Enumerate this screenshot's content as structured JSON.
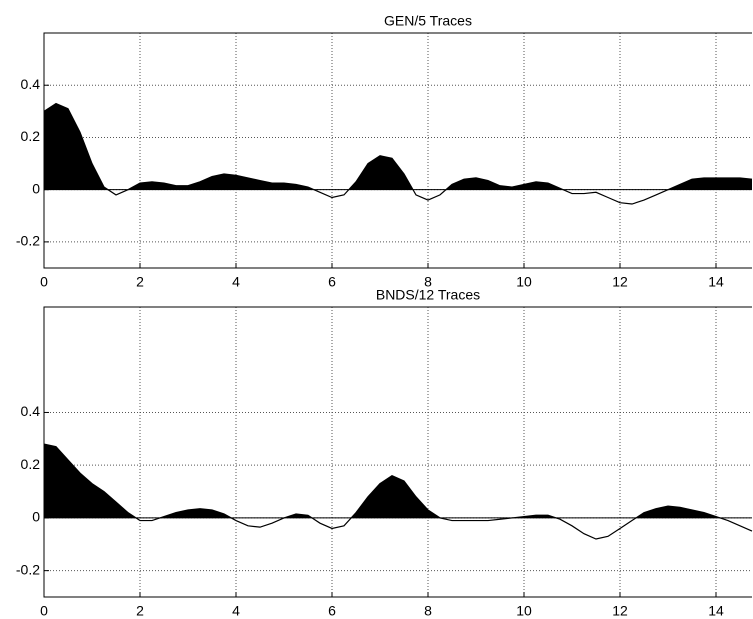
{
  "chart_data": [
    {
      "type": "area",
      "title": "GEN/5 Traces",
      "color": "#000000",
      "grid": true,
      "x": [
        0,
        0.25,
        0.5,
        0.75,
        1,
        1.25,
        1.5,
        1.75,
        2,
        2.25,
        2.5,
        2.75,
        3,
        3.25,
        3.5,
        3.75,
        4,
        4.25,
        4.5,
        4.75,
        5,
        5.25,
        5.5,
        5.75,
        6,
        6.25,
        6.5,
        6.75,
        7,
        7.25,
        7.5,
        7.75,
        8,
        8.25,
        8.5,
        8.75,
        9,
        9.25,
        9.5,
        9.75,
        10,
        10.25,
        10.5,
        10.75,
        11,
        11.25,
        11.5,
        11.75,
        12,
        12.25,
        12.5,
        12.75,
        13,
        13.25,
        13.5,
        13.75,
        14,
        14.25,
        14.5,
        14.75
      ],
      "values": [
        0.3,
        0.33,
        0.31,
        0.22,
        0.1,
        0.01,
        -0.02,
        0.0,
        0.025,
        0.03,
        0.025,
        0.015,
        0.015,
        0.03,
        0.05,
        0.06,
        0.055,
        0.045,
        0.035,
        0.025,
        0.025,
        0.02,
        0.01,
        -0.01,
        -0.03,
        -0.02,
        0.03,
        0.1,
        0.13,
        0.12,
        0.06,
        -0.02,
        -0.04,
        -0.02,
        0.02,
        0.04,
        0.045,
        0.035,
        0.015,
        0.01,
        0.02,
        0.03,
        0.025,
        0.005,
        -0.015,
        -0.015,
        -0.01,
        -0.03,
        -0.05,
        -0.055,
        -0.04,
        -0.02,
        0.0,
        0.02,
        0.04,
        0.045,
        0.045,
        0.045,
        0.045,
        0.04
      ],
      "xlim": [
        0,
        14.75
      ],
      "xticks": [
        0,
        2,
        4,
        6,
        8,
        10,
        12,
        14
      ],
      "ylim": [
        -0.3,
        0.6
      ],
      "yticks": [
        -0.2,
        0,
        0.2,
        0.4
      ]
    },
    {
      "type": "area",
      "title": "BNDS/12 Traces",
      "color": "#000000",
      "grid": true,
      "x": [
        0,
        0.25,
        0.5,
        0.75,
        1,
        1.25,
        1.5,
        1.75,
        2,
        2.25,
        2.5,
        2.75,
        3,
        3.25,
        3.5,
        3.75,
        4,
        4.25,
        4.5,
        4.75,
        5,
        5.25,
        5.5,
        5.75,
        6,
        6.25,
        6.5,
        6.75,
        7,
        7.25,
        7.5,
        7.75,
        8,
        8.25,
        8.5,
        8.75,
        9,
        9.25,
        9.5,
        9.75,
        10,
        10.25,
        10.5,
        10.75,
        11,
        11.25,
        11.5,
        11.75,
        12,
        12.25,
        12.5,
        12.75,
        13,
        13.25,
        13.5,
        13.75,
        14,
        14.25,
        14.5,
        14.75
      ],
      "values": [
        0.28,
        0.27,
        0.22,
        0.17,
        0.13,
        0.1,
        0.06,
        0.02,
        -0.01,
        -0.01,
        0.005,
        0.02,
        0.03,
        0.035,
        0.03,
        0.015,
        -0.01,
        -0.03,
        -0.035,
        -0.02,
        0.0,
        0.015,
        0.01,
        -0.02,
        -0.04,
        -0.03,
        0.02,
        0.08,
        0.13,
        0.16,
        0.14,
        0.08,
        0.03,
        0.0,
        -0.01,
        -0.01,
        -0.01,
        -0.01,
        -0.005,
        0.0,
        0.005,
        0.01,
        0.01,
        -0.005,
        -0.03,
        -0.06,
        -0.08,
        -0.07,
        -0.04,
        -0.01,
        0.02,
        0.035,
        0.045,
        0.04,
        0.03,
        0.02,
        0.005,
        -0.01,
        -0.03,
        -0.05
      ],
      "xlim": [
        0,
        14.75
      ],
      "xticks": [
        0,
        2,
        4,
        6,
        8,
        10,
        12,
        14
      ],
      "ylim": [
        -0.3,
        0.8
      ],
      "yticks": [
        -0.2,
        0,
        0.2,
        0.4
      ]
    }
  ]
}
